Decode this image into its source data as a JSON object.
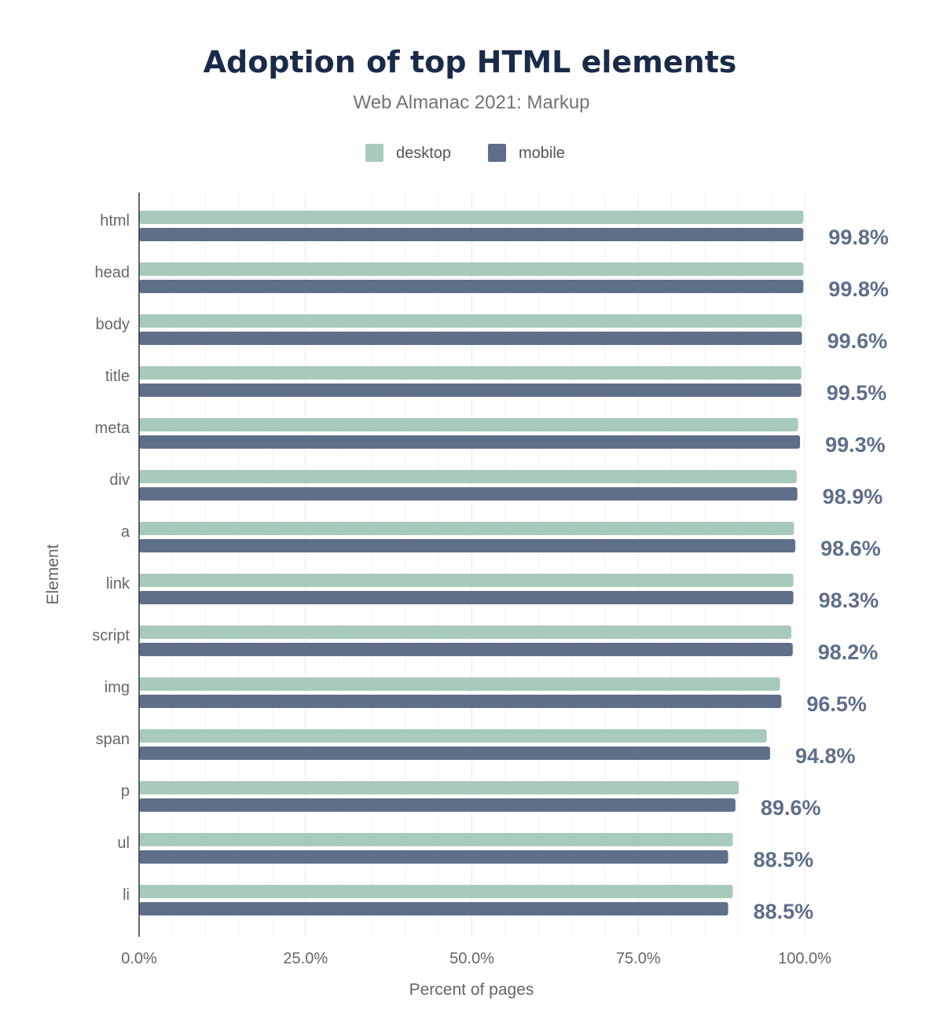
{
  "chart_data": {
    "type": "bar",
    "orientation": "horizontal",
    "title": "Adoption of top HTML elements",
    "subtitle": "Web Almanac 2021: Markup",
    "xlabel": "Percent of pages",
    "ylabel": "Element",
    "xlim": [
      0,
      100
    ],
    "xticks": [
      "0.0%",
      "25.0%",
      "50.0%",
      "75.0%",
      "100.0%"
    ],
    "grid": true,
    "legend": "top-center",
    "categories": [
      "html",
      "head",
      "body",
      "title",
      "meta",
      "div",
      "a",
      "link",
      "script",
      "img",
      "span",
      "p",
      "ul",
      "li"
    ],
    "series": [
      {
        "name": "desktop",
        "color": "#a8cabb",
        "values": [
          99.8,
          99.8,
          99.6,
          99.5,
          99.0,
          98.8,
          98.4,
          98.3,
          98.0,
          96.3,
          94.3,
          90.1,
          89.2,
          89.2
        ]
      },
      {
        "name": "mobile",
        "color": "#5f6f8a",
        "values": [
          99.8,
          99.8,
          99.6,
          99.5,
          99.3,
          98.9,
          98.6,
          98.3,
          98.2,
          96.5,
          94.8,
          89.6,
          88.5,
          88.5
        ]
      }
    ],
    "data_labels": [
      "99.8%",
      "99.8%",
      "99.6%",
      "99.5%",
      "99.3%",
      "98.9%",
      "98.6%",
      "98.3%",
      "98.2%",
      "96.5%",
      "94.8%",
      "89.6%",
      "88.5%",
      "88.5%"
    ]
  }
}
